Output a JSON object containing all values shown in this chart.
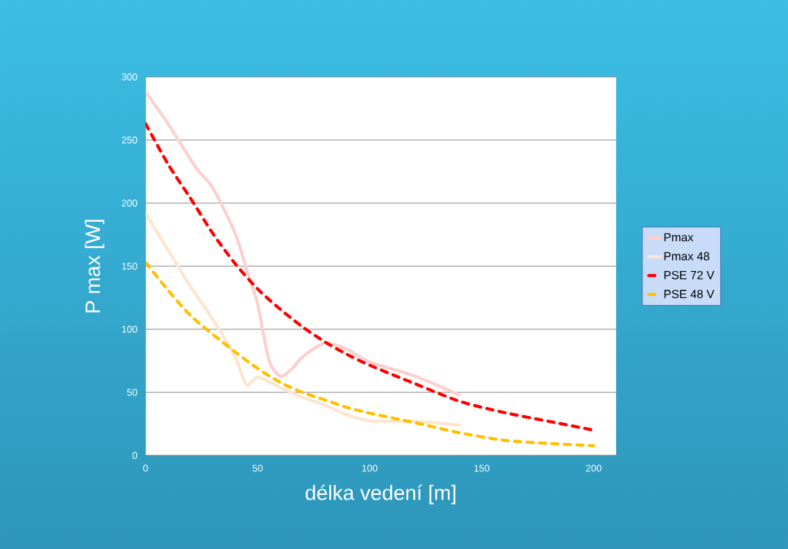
{
  "chart_data": {
    "type": "line",
    "xlabel": "délka vedení [m]",
    "ylabel": "P max [W]",
    "xlim": [
      0,
      210
    ],
    "xticks": [
      0,
      50,
      100,
      150,
      200
    ],
    "ylim": [
      0,
      300
    ],
    "yticks": [
      0,
      50,
      100,
      150,
      200,
      250,
      300
    ],
    "grid": "y",
    "legend": "right",
    "marker": "none",
    "series": [
      {
        "name": "Pmax",
        "color": "#fdcfcf",
        "line_style": "solid",
        "x": [
          0,
          10,
          22.5,
          30,
          40,
          45,
          50,
          55,
          60,
          65,
          70,
          80,
          90,
          100,
          120,
          140
        ],
        "values": [
          288,
          263,
          228,
          212,
          176,
          148,
          120,
          76,
          63,
          68,
          78,
          89,
          84,
          74,
          63,
          48
        ]
      },
      {
        "name": "Pmax 48",
        "color": "#fde5cf",
        "line_style": "solid",
        "x": [
          0,
          10,
          20,
          30,
          40,
          45,
          50,
          60,
          70,
          80,
          90,
          100,
          110,
          120,
          140
        ],
        "values": [
          192,
          163,
          134,
          108,
          78,
          56,
          62,
          54,
          46,
          40,
          32,
          27.5,
          27,
          27,
          24
        ]
      },
      {
        "name": "PSE 72 V",
        "color": "#ff0000",
        "line_style": "dashed",
        "x": [
          0,
          10,
          20,
          30,
          40,
          50,
          60,
          70,
          80,
          90,
          100,
          120,
          140,
          160,
          180,
          200
        ],
        "values": [
          263,
          231,
          204,
          176,
          152,
          132,
          116,
          102,
          90,
          80,
          71.5,
          57,
          43,
          34,
          27,
          20
        ]
      },
      {
        "name": "PSE 48 V",
        "color": "#ffc000",
        "line_style": "dashed",
        "x": [
          0,
          10,
          20,
          30,
          40,
          50,
          60,
          70,
          80,
          90,
          100,
          120,
          140,
          160,
          180,
          200
        ],
        "values": [
          153,
          131,
          111,
          96,
          82,
          69,
          58,
          50,
          44,
          38,
          33.5,
          26,
          18,
          12,
          9.5,
          7.7
        ]
      }
    ]
  }
}
